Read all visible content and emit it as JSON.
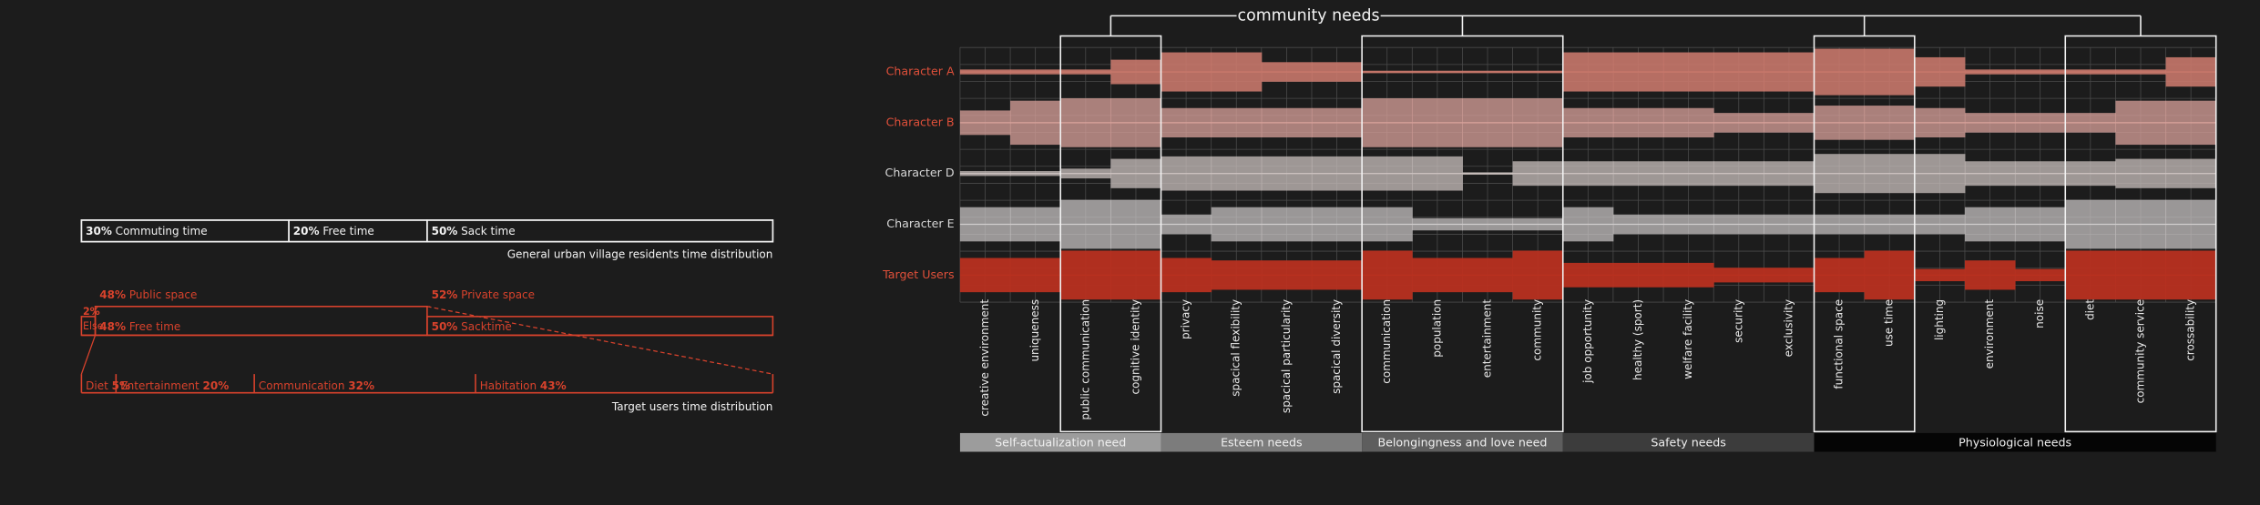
{
  "community_title": "community needs",
  "rows": [
    {
      "name": "Character A",
      "values": [
        1,
        1,
        1,
        5,
        8,
        8,
        4,
        4,
        0.5,
        0.5,
        0.5,
        0.5,
        8,
        8,
        8,
        8,
        8,
        9.5,
        9.5,
        6,
        1,
        1,
        1,
        1,
        6
      ]
    },
    {
      "name": "Character B",
      "values": [
        5,
        9,
        10,
        10,
        6,
        6,
        6,
        6,
        10,
        10,
        10,
        10,
        6,
        6,
        6,
        4,
        4,
        7,
        7,
        6,
        4,
        4,
        4,
        9,
        9
      ]
    },
    {
      "name": "Character D",
      "values": [
        1,
        1,
        2,
        6,
        7,
        7,
        7,
        7,
        7,
        7,
        0.5,
        5,
        5,
        5,
        5,
        5,
        5,
        8,
        8,
        8,
        5,
        5,
        5,
        6,
        6
      ]
    },
    {
      "name": "Character E",
      "values": [
        7,
        7,
        10,
        10,
        4,
        7,
        7,
        7,
        7,
        2.5,
        2.5,
        2.5,
        7,
        4,
        4,
        4,
        4,
        4,
        4,
        4,
        7,
        7,
        10,
        10,
        10
      ]
    },
    {
      "name": "Target Users",
      "values": [
        7,
        7,
        10,
        10,
        7,
        6,
        6,
        6,
        10,
        7,
        7,
        10,
        5,
        5,
        5,
        3,
        3,
        7,
        10,
        2.5,
        6,
        2.5,
        10,
        10,
        10
      ]
    }
  ],
  "groups": [
    {
      "name": "Self-actualization need",
      "columns": [
        "creative environment",
        "uniqueness",
        "public communication",
        "cognitive identity"
      ]
    },
    {
      "name": "Esteem needs",
      "columns": [
        "privacy",
        "spacical flexibility",
        "spacical particularity",
        "spacical diversity"
      ]
    },
    {
      "name": "Belongingness and love need",
      "columns": [
        "communication",
        "population",
        "entertainment",
        "community"
      ]
    },
    {
      "name": "Safety needs",
      "columns": [
        "job opportunity",
        "healthy (sport)",
        "welfare facility",
        "security",
        "exclusivity"
      ]
    },
    {
      "name": "Physiological needs",
      "columns": [
        "functional space",
        "use time",
        "lighting",
        "environment",
        "noise",
        "diet",
        "community service",
        "crossability"
      ]
    }
  ],
  "general": {
    "segments": [
      {
        "value": 30,
        "label": "30%",
        "name": "Commuting time"
      },
      {
        "value": 20,
        "label": "20%",
        "name": "Free time"
      },
      {
        "value": 50,
        "label": "50%",
        "name": "Sack time"
      }
    ],
    "caption": "General urban village residents time distribution"
  },
  "target": {
    "top": [
      {
        "value": 48,
        "label": "48%",
        "name": "Public space"
      },
      {
        "value": 52,
        "label": "52%",
        "name": "Private space"
      }
    ],
    "middle": [
      {
        "value": 2,
        "label": "2%",
        "name": "Else"
      },
      {
        "value": 48,
        "label": "48%",
        "name": "Free time"
      },
      {
        "value": 50,
        "label": "50%",
        "name": "Sacktime"
      }
    ],
    "bottom": [
      {
        "name": "Diet",
        "value": 5,
        "label": "5%"
      },
      {
        "name": "Entertainment",
        "value": 20,
        "label": "20%"
      },
      {
        "name": "Communication",
        "value": 32,
        "label": "32%"
      },
      {
        "name": "Habitation",
        "value": 43,
        "label": "43%"
      }
    ],
    "caption": "Target users time distribution"
  }
}
